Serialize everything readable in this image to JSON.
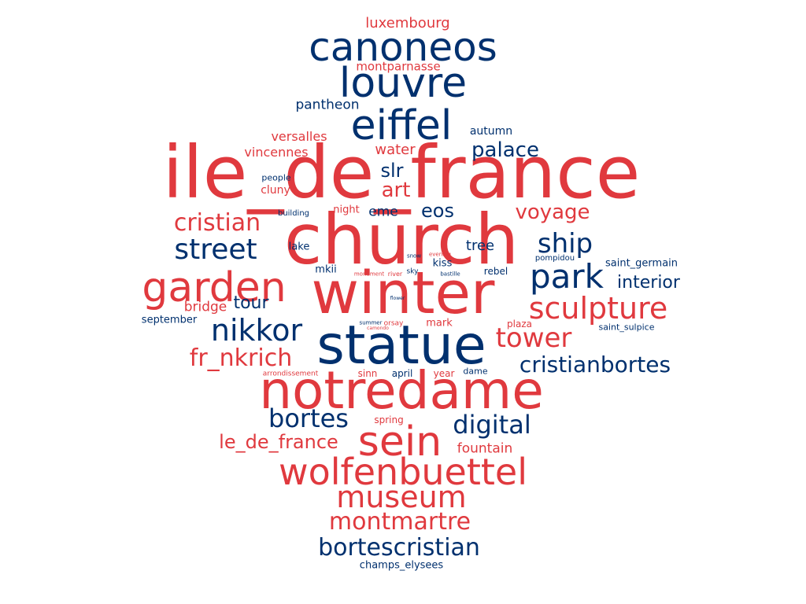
{
  "colors": {
    "red": "#e0393e",
    "blue": "#00306e",
    "background": "#ffffff"
  },
  "words": [
    {
      "text": "ile_de_france",
      "color": "red"
    },
    {
      "text": "church",
      "color": "red"
    },
    {
      "text": "winter",
      "color": "red"
    },
    {
      "text": "statue",
      "color": "blue"
    },
    {
      "text": "notredame",
      "color": "red"
    },
    {
      "text": "louvre",
      "color": "blue"
    },
    {
      "text": "eiffel",
      "color": "blue"
    },
    {
      "text": "canoneos",
      "color": "blue"
    },
    {
      "text": "garden",
      "color": "red"
    },
    {
      "text": "sein",
      "color": "red"
    },
    {
      "text": "wolfenbuettel",
      "color": "red"
    },
    {
      "text": "park",
      "color": "blue"
    },
    {
      "text": "sculpture",
      "color": "red"
    },
    {
      "text": "nikkor",
      "color": "blue"
    },
    {
      "text": "museum",
      "color": "red"
    },
    {
      "text": "street",
      "color": "blue"
    },
    {
      "text": "ship",
      "color": "blue"
    },
    {
      "text": "tower",
      "color": "red"
    },
    {
      "text": "cristianbortes",
      "color": "blue"
    },
    {
      "text": "bortescristian",
      "color": "blue"
    },
    {
      "text": "montmartre",
      "color": "red"
    },
    {
      "text": "fr_nkrich",
      "color": "red"
    },
    {
      "text": "digital",
      "color": "blue"
    },
    {
      "text": "bortes",
      "color": "blue"
    },
    {
      "text": "cristian",
      "color": "red"
    },
    {
      "text": "voyage",
      "color": "red"
    },
    {
      "text": "palace",
      "color": "blue"
    },
    {
      "text": "le_de_france",
      "color": "red"
    },
    {
      "text": "slr",
      "color": "blue"
    },
    {
      "text": "art",
      "color": "red"
    },
    {
      "text": "eos",
      "color": "blue"
    },
    {
      "text": "tour",
      "color": "blue"
    },
    {
      "text": "interior",
      "color": "blue"
    },
    {
      "text": "luxembourg",
      "color": "red"
    },
    {
      "text": "water",
      "color": "red"
    },
    {
      "text": "versalles",
      "color": "red"
    },
    {
      "text": "vincennes",
      "color": "red"
    },
    {
      "text": "pantheon",
      "color": "blue"
    },
    {
      "text": "montparnasse",
      "color": "red"
    },
    {
      "text": "bridge",
      "color": "red"
    },
    {
      "text": "fountain",
      "color": "red"
    },
    {
      "text": "eme",
      "color": "blue"
    },
    {
      "text": "tree",
      "color": "blue"
    },
    {
      "text": "autumn",
      "color": "blue"
    },
    {
      "text": "champs_elysees",
      "color": "blue"
    },
    {
      "text": "september",
      "color": "blue"
    },
    {
      "text": "cluny",
      "color": "red"
    },
    {
      "text": "night",
      "color": "red"
    },
    {
      "text": "lake",
      "color": "blue"
    },
    {
      "text": "mkii",
      "color": "blue"
    },
    {
      "text": "kiss",
      "color": "blue"
    },
    {
      "text": "rebel",
      "color": "blue"
    },
    {
      "text": "mark",
      "color": "red"
    },
    {
      "text": "plaza",
      "color": "red"
    },
    {
      "text": "saint_germain",
      "color": "blue"
    },
    {
      "text": "saint_sulpice",
      "color": "blue"
    },
    {
      "text": "sinn",
      "color": "red"
    },
    {
      "text": "april",
      "color": "blue"
    },
    {
      "text": "year",
      "color": "red"
    },
    {
      "text": "dame",
      "color": "blue"
    },
    {
      "text": "spring",
      "color": "red"
    },
    {
      "text": "people",
      "color": "blue"
    },
    {
      "text": "building",
      "color": "blue"
    },
    {
      "text": "pompidou",
      "color": "blue"
    },
    {
      "text": "arrondissement",
      "color": "red"
    },
    {
      "text": "orsay",
      "color": "red"
    },
    {
      "text": "summer",
      "color": "blue"
    },
    {
      "text": "river",
      "color": "red"
    },
    {
      "text": "sky",
      "color": "blue"
    },
    {
      "text": "monument",
      "color": "red"
    },
    {
      "text": "snow",
      "color": "blue"
    },
    {
      "text": "evening",
      "color": "red"
    },
    {
      "text": "bastille",
      "color": "blue"
    },
    {
      "text": "flower",
      "color": "blue"
    },
    {
      "text": "camondo",
      "color": "red"
    }
  ]
}
